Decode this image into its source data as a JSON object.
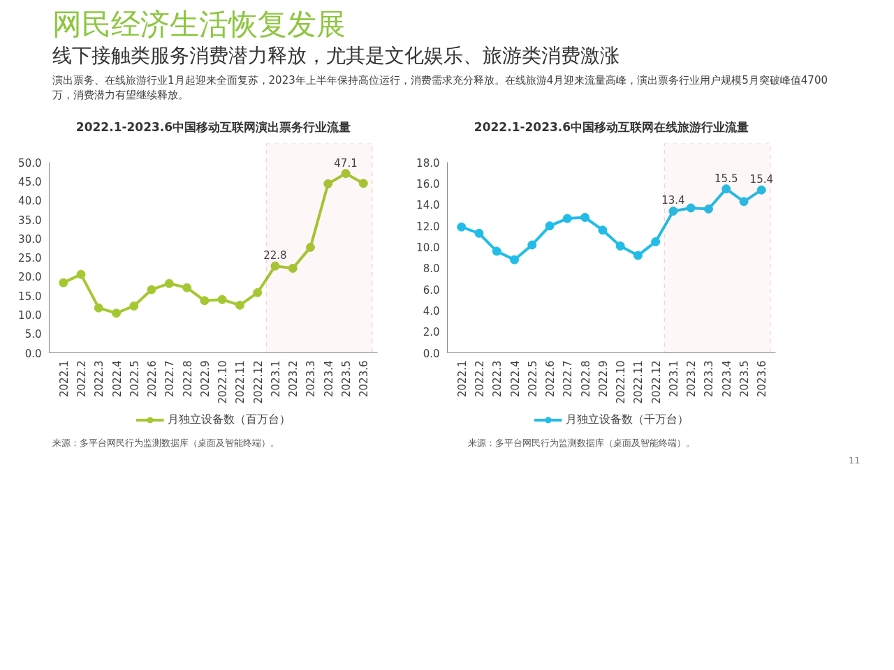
{
  "chart_data": [
    {
      "type": "line",
      "title": "2022.1-2023.6中国移动互联网演出票务行业流量",
      "categories": [
        "2022.1",
        "2022.2",
        "2022.3",
        "2022.4",
        "2022.5",
        "2022.6",
        "2022.7",
        "2022.8",
        "2022.9",
        "2022.10",
        "2022.11",
        "2022.12",
        "2023.1",
        "2023.2",
        "2023.3",
        "2023.4",
        "2023.5",
        "2023.6"
      ],
      "series": [
        {
          "name": "月独立设备数（百万台）",
          "color": "#a5c832",
          "values": [
            18.4,
            20.6,
            11.8,
            10.4,
            12.3,
            16.6,
            18.2,
            17.1,
            13.7,
            14.0,
            12.5,
            15.8,
            22.8,
            22.2,
            27.7,
            44.4,
            47.1,
            44.5
          ],
          "value_labels": [
            null,
            null,
            null,
            null,
            null,
            null,
            null,
            null,
            null,
            null,
            null,
            null,
            "22.8",
            null,
            null,
            null,
            "47.1",
            null
          ]
        }
      ],
      "ylim": [
        0,
        50
      ],
      "yticks": [
        {
          "value": 0,
          "label": "0.0"
        },
        {
          "value": 5,
          "label": "5.0"
        },
        {
          "value": 10,
          "label": "10.0"
        },
        {
          "value": 15,
          "label": "15.0"
        },
        {
          "value": 20,
          "label": "20.0"
        },
        {
          "value": 25,
          "label": "25.0"
        },
        {
          "value": 30,
          "label": "30.0"
        },
        {
          "value": 35,
          "label": "35.0"
        },
        {
          "value": 40,
          "label": "40.0"
        },
        {
          "value": 45,
          "label": "45.0"
        },
        {
          "value": 50,
          "label": "50.0"
        }
      ],
      "bands": [
        {
          "axis": "x",
          "from": "2023.1",
          "to": "2023.6",
          "color": "#e06666"
        }
      ],
      "marker": "circle",
      "line_style": "solid",
      "grid": false,
      "legend": "bottom",
      "annotations": [
        "网民经济生活恢复发展",
        "线下接触类服务消费潜力释放，尤其是文化娱乐、旅游类消费激涨",
        "演出票务、在线旅游行业1月起迎来全面复苏，2023年上半年保持高位运行，消费需求充分释放。在线旅游4月迎来流量高峰，演出票务行业用户规模5月突破峰值4700万，消费潜力有望继续释放。",
        "来源：多平台网民行为监测数据库（桌面及智能终端）。"
      ]
    },
    {
      "type": "line",
      "title": "2022.1-2023.6中国移动互联网在线旅游行业流量",
      "categories": [
        "2022.1",
        "2022.2",
        "2022.3",
        "2022.4",
        "2022.5",
        "2022.6",
        "2022.7",
        "2022.8",
        "2022.9",
        "2022.10",
        "2022.11",
        "2022.12",
        "2023.1",
        "2023.2",
        "2023.3",
        "2023.4",
        "2023.5",
        "2023.6"
      ],
      "series": [
        {
          "name": "月独立设备数（千万台）",
          "color": "#21bde8",
          "values": [
            11.9,
            11.3,
            9.6,
            8.8,
            10.2,
            12.0,
            12.7,
            12.8,
            11.6,
            10.1,
            9.2,
            10.5,
            13.4,
            13.7,
            13.6,
            15.5,
            14.3,
            15.4
          ],
          "value_labels": [
            null,
            null,
            null,
            null,
            null,
            null,
            null,
            null,
            null,
            null,
            null,
            null,
            "13.4",
            null,
            null,
            "15.5",
            null,
            "15.4"
          ]
        }
      ],
      "ylim": [
        0,
        18
      ],
      "yticks": [
        {
          "value": 0,
          "label": "0.0"
        },
        {
          "value": 2,
          "label": "2.0"
        },
        {
          "value": 4,
          "label": "4.0"
        },
        {
          "value": 6,
          "label": "6.0"
        },
        {
          "value": 8,
          "label": "8.0"
        },
        {
          "value": 10,
          "label": "10.0"
        },
        {
          "value": 12,
          "label": "12.0"
        },
        {
          "value": 14,
          "label": "14.0"
        },
        {
          "value": 16,
          "label": "16.0"
        },
        {
          "value": 18,
          "label": "18.0"
        }
      ],
      "bands": [
        {
          "axis": "x",
          "from": "2023.1",
          "to": "2023.6",
          "color": "#e06666"
        }
      ],
      "marker": "circle",
      "line_style": "solid",
      "grid": false,
      "legend": "bottom",
      "annotations": [
        "来源：多平台网民行为监测数据库（桌面及智能终端）。",
        "11"
      ]
    }
  ]
}
